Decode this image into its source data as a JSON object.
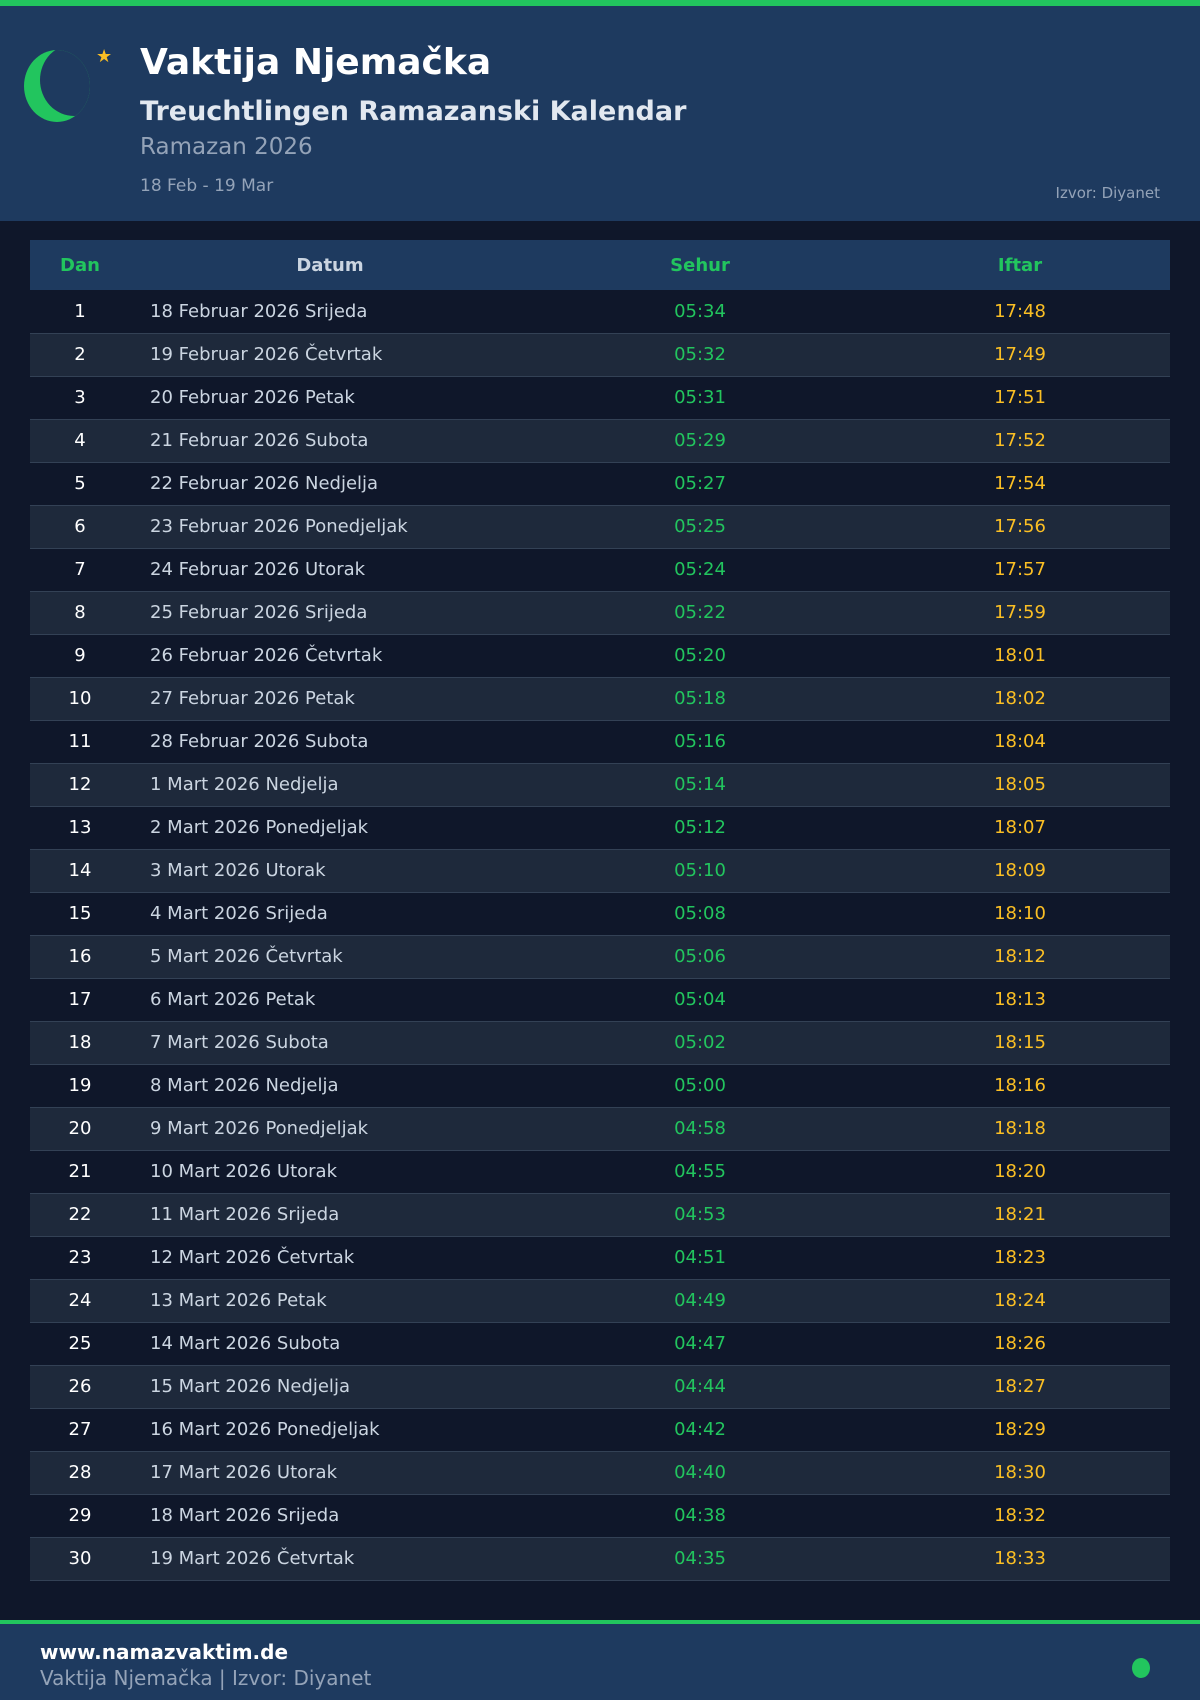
{
  "header": {
    "title": "Vaktija Njemačka",
    "subtitle": "Treuchtlingen Ramazanski Kalendar",
    "year": "Ramazan 2026",
    "range": "18 Feb - 19 Mar",
    "source": "Izvor: Diyanet",
    "icons": [
      "crescent-moon-icon",
      "star-icon"
    ]
  },
  "colors": {
    "accent": "#22c55e",
    "iftar": "#fbbf24",
    "header_bg": "#1e3a5f",
    "page_bg": "#0f172a"
  },
  "table": {
    "columns": [
      "Dan",
      "Datum",
      "Sehur",
      "Iftar"
    ],
    "rows": [
      [
        "1",
        "18 Februar 2026 Srijeda",
        "05:34",
        "17:48"
      ],
      [
        "2",
        "19 Februar 2026 Četvrtak",
        "05:32",
        "17:49"
      ],
      [
        "3",
        "20 Februar 2026 Petak",
        "05:31",
        "17:51"
      ],
      [
        "4",
        "21 Februar 2026 Subota",
        "05:29",
        "17:52"
      ],
      [
        "5",
        "22 Februar 2026 Nedjelja",
        "05:27",
        "17:54"
      ],
      [
        "6",
        "23 Februar 2026 Ponedjeljak",
        "05:25",
        "17:56"
      ],
      [
        "7",
        "24 Februar 2026 Utorak",
        "05:24",
        "17:57"
      ],
      [
        "8",
        "25 Februar 2026 Srijeda",
        "05:22",
        "17:59"
      ],
      [
        "9",
        "26 Februar 2026 Četvrtak",
        "05:20",
        "18:01"
      ],
      [
        "10",
        "27 Februar 2026 Petak",
        "05:18",
        "18:02"
      ],
      [
        "11",
        "28 Februar 2026 Subota",
        "05:16",
        "18:04"
      ],
      [
        "12",
        "1 Mart 2026 Nedjelja",
        "05:14",
        "18:05"
      ],
      [
        "13",
        "2 Mart 2026 Ponedjeljak",
        "05:12",
        "18:07"
      ],
      [
        "14",
        "3 Mart 2026 Utorak",
        "05:10",
        "18:09"
      ],
      [
        "15",
        "4 Mart 2026 Srijeda",
        "05:08",
        "18:10"
      ],
      [
        "16",
        "5 Mart 2026 Četvrtak",
        "05:06",
        "18:12"
      ],
      [
        "17",
        "6 Mart 2026 Petak",
        "05:04",
        "18:13"
      ],
      [
        "18",
        "7 Mart 2026 Subota",
        "05:02",
        "18:15"
      ],
      [
        "19",
        "8 Mart 2026 Nedjelja",
        "05:00",
        "18:16"
      ],
      [
        "20",
        "9 Mart 2026 Ponedjeljak",
        "04:58",
        "18:18"
      ],
      [
        "21",
        "10 Mart 2026 Utorak",
        "04:55",
        "18:20"
      ],
      [
        "22",
        "11 Mart 2026 Srijeda",
        "04:53",
        "18:21"
      ],
      [
        "23",
        "12 Mart 2026 Četvrtak",
        "04:51",
        "18:23"
      ],
      [
        "24",
        "13 Mart 2026 Petak",
        "04:49",
        "18:24"
      ],
      [
        "25",
        "14 Mart 2026 Subota",
        "04:47",
        "18:26"
      ],
      [
        "26",
        "15 Mart 2026 Nedjelja",
        "04:44",
        "18:27"
      ],
      [
        "27",
        "16 Mart 2026 Ponedjeljak",
        "04:42",
        "18:29"
      ],
      [
        "28",
        "17 Mart 2026 Utorak",
        "04:40",
        "18:30"
      ],
      [
        "29",
        "18 Mart 2026 Srijeda",
        "04:38",
        "18:32"
      ],
      [
        "30",
        "19 Mart 2026 Četvrtak",
        "04:35",
        "18:33"
      ]
    ]
  },
  "footer": {
    "site": "www.namazvaktim.de",
    "text": "Vaktija Njemačka | Izvor: Diyanet"
  }
}
